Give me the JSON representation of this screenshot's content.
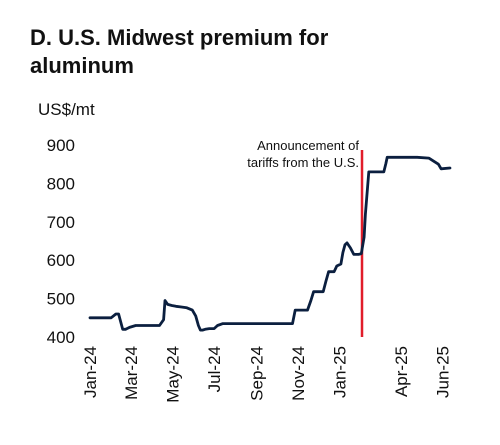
{
  "chart_data": {
    "type": "line",
    "title": "D. U.S. Midwest premium for aluminum",
    "ylabel": "US$/mt",
    "xlabel": "",
    "ylim": [
      400,
      900
    ],
    "yticks": [
      400,
      500,
      600,
      700,
      800,
      900
    ],
    "xlim": [
      "2024-01-01",
      "2025-06-15"
    ],
    "xticks": [
      {
        "date": "2024-01-01",
        "label": "Jan-24"
      },
      {
        "date": "2024-03-01",
        "label": "Mar-24"
      },
      {
        "date": "2024-05-01",
        "label": "May-24"
      },
      {
        "date": "2024-07-01",
        "label": "Jul-24"
      },
      {
        "date": "2024-09-01",
        "label": "Sep-24"
      },
      {
        "date": "2024-11-01",
        "label": "Nov-24"
      },
      {
        "date": "2025-01-01",
        "label": "Jan-25"
      },
      {
        "date": "2025-04-01",
        "label": "Apr-25"
      },
      {
        "date": "2025-06-01",
        "label": "Jun-25"
      }
    ],
    "grid": false,
    "legend": "none",
    "line_color": "#0b1f3f",
    "marker_color": "#e11d2a",
    "series": [
      {
        "x": [
          "2024-01-01",
          "2024-02-01",
          "2024-02-08",
          "2024-02-12",
          "2024-02-18",
          "2024-02-22",
          "2024-02-28",
          "2024-03-08",
          "2024-03-20",
          "2024-04-01",
          "2024-04-12",
          "2024-04-18",
          "2024-04-20",
          "2024-04-24",
          "2024-04-30",
          "2024-05-06",
          "2024-05-14",
          "2024-05-22",
          "2024-05-30",
          "2024-06-04",
          "2024-06-08",
          "2024-06-11",
          "2024-06-14",
          "2024-06-18",
          "2024-06-24",
          "2024-07-01",
          "2024-07-06",
          "2024-07-14",
          "2024-08-01",
          "2024-09-01",
          "2024-10-01",
          "2024-10-24",
          "2024-10-28",
          "2024-11-15",
          "2024-11-20",
          "2024-11-24",
          "2024-12-08",
          "2024-12-12",
          "2024-12-16",
          "2024-12-24",
          "2024-12-28",
          "2025-01-03",
          "2025-01-06",
          "2025-01-09",
          "2025-01-12",
          "2025-01-17",
          "2025-01-22",
          "2025-01-26",
          "2025-01-29",
          "2025-02-02",
          "2025-02-06",
          "2025-02-08",
          "2025-02-13",
          "2025-02-18",
          "2025-02-25",
          "2025-03-07",
          "2025-03-10",
          "2025-03-12",
          "2025-04-10",
          "2025-04-14",
          "2025-04-25",
          "2025-05-12",
          "2025-05-26",
          "2025-05-30",
          "2025-06-12"
        ],
        "y": [
          450,
          450,
          460,
          460,
          420,
          420,
          425,
          430,
          430,
          430,
          430,
          445,
          495,
          485,
          482,
          480,
          478,
          476,
          470,
          455,
          430,
          418,
          418,
          420,
          422,
          422,
          430,
          435,
          435,
          435,
          435,
          435,
          470,
          470,
          495,
          518,
          518,
          545,
          570,
          570,
          585,
          590,
          620,
          640,
          645,
          632,
          615,
          615,
          615,
          617,
          660,
          720,
          830,
          830,
          830,
          830,
          852,
          868,
          868,
          868,
          868,
          866,
          850,
          838,
          840
        ]
      }
    ],
    "annotations": [
      {
        "type": "vline",
        "x": "2025-02-03",
        "text_lines": [
          "Announcement of",
          "tariffs from the U.S."
        ]
      }
    ]
  }
}
